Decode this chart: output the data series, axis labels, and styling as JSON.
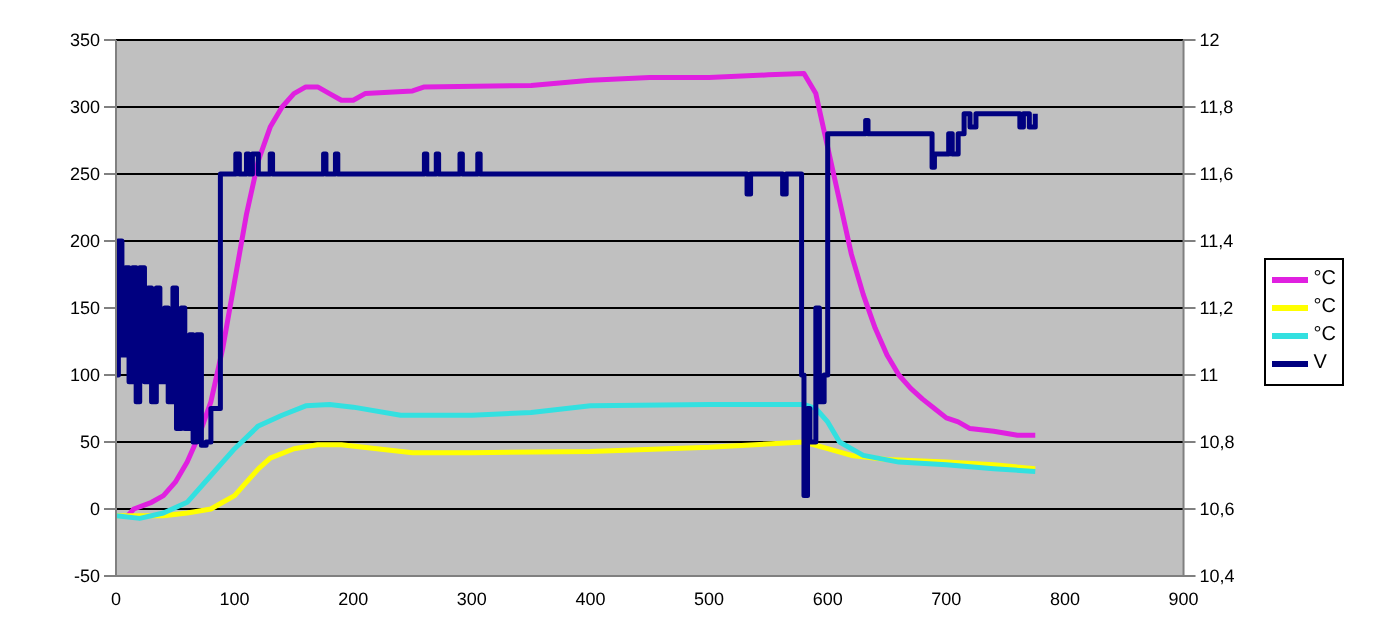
{
  "chart_data": {
    "type": "line",
    "xlim": [
      0,
      900
    ],
    "xticks": [
      0,
      100,
      200,
      300,
      400,
      500,
      600,
      700,
      800,
      900
    ],
    "ylim": [
      -50,
      350
    ],
    "yticks": [
      -50,
      0,
      50,
      100,
      150,
      200,
      250,
      300,
      350
    ],
    "y2lim": [
      10.4,
      12
    ],
    "y2ticks": [
      {
        "value": 10.4,
        "label": "10,4"
      },
      {
        "value": 10.6,
        "label": "10,6"
      },
      {
        "value": 10.8,
        "label": "10,8"
      },
      11,
      {
        "value": 11.2,
        "label": "11,2"
      },
      {
        "value": 11.4,
        "label": "11,4"
      },
      {
        "value": 11.6,
        "label": "11,6"
      },
      {
        "value": 11.8,
        "label": "11,8"
      },
      12
    ],
    "grid": "y",
    "legend": "right",
    "marker": "none",
    "line_style": "solid",
    "series": [
      {
        "name": "°C",
        "color": "#e020e0",
        "x": [
          10,
          15,
          30,
          40,
          50,
          60,
          70,
          80,
          90,
          100,
          110,
          120,
          130,
          140,
          150,
          160,
          170,
          180,
          190,
          200,
          210,
          250,
          260,
          350,
          400,
          450,
          500,
          550,
          580,
          590,
          600,
          610,
          620,
          630,
          640,
          650,
          660,
          670,
          680,
          690,
          700,
          710,
          720,
          740,
          760,
          775
        ],
        "values": [
          -5,
          0,
          5,
          10,
          20,
          35,
          55,
          80,
          120,
          170,
          220,
          260,
          285,
          300,
          310,
          315,
          315,
          310,
          305,
          305,
          310,
          312,
          315,
          316,
          320,
          322,
          322,
          324,
          325,
          310,
          270,
          230,
          190,
          160,
          135,
          115,
          100,
          90,
          82,
          75,
          68,
          65,
          60,
          58,
          55,
          55
        ]
      },
      {
        "name": "°C",
        "color": "#ffff00",
        "x": [
          0,
          40,
          60,
          80,
          90,
          100,
          110,
          120,
          130,
          150,
          170,
          190,
          220,
          250,
          300,
          400,
          500,
          580,
          600,
          620,
          650,
          700,
          740,
          775
        ],
        "values": [
          -5,
          -5,
          -3,
          0,
          5,
          10,
          20,
          30,
          38,
          45,
          48,
          48,
          45,
          42,
          42,
          43,
          46,
          50,
          45,
          40,
          37,
          35,
          33,
          30
        ]
      },
      {
        "name": "°C",
        "color": "#33e0e0",
        "x": [
          0,
          20,
          40,
          60,
          80,
          100,
          120,
          140,
          160,
          180,
          200,
          240,
          300,
          350,
          400,
          500,
          580,
          590,
          600,
          610,
          630,
          660,
          700,
          740,
          775
        ],
        "values": [
          -5,
          -7,
          -3,
          5,
          25,
          45,
          62,
          70,
          77,
          78,
          76,
          70,
          70,
          72,
          77,
          78,
          78,
          75,
          65,
          50,
          40,
          35,
          33,
          30,
          28
        ]
      },
      {
        "name": "V",
        "type": "step",
        "color": "#000080",
        "axis": "y2",
        "x": [
          0,
          2,
          5,
          8,
          11,
          14,
          17,
          20,
          24,
          27,
          30,
          34,
          37,
          41,
          44,
          48,
          51,
          55,
          58,
          62,
          65,
          68,
          72,
          76,
          80,
          88,
          100,
          101,
          104,
          110,
          112,
          115,
          120,
          130,
          132,
          175,
          177,
          185,
          187,
          260,
          262,
          270,
          272,
          290,
          292,
          305,
          307,
          530,
          532,
          535,
          560,
          562,
          565,
          575,
          578,
          580,
          583,
          585,
          590,
          593,
          597,
          600,
          630,
          632,
          634,
          685,
          688,
          690,
          700,
          702,
          705,
          710,
          715,
          720,
          725,
          760,
          762,
          765,
          770,
          775
        ],
        "values": [
          11,
          11.4,
          11.06,
          11.32,
          10.98,
          11.32,
          10.92,
          11.32,
          10.98,
          11.26,
          10.92,
          11.26,
          10.98,
          11.2,
          10.92,
          11.26,
          10.84,
          11.2,
          10.84,
          11.12,
          10.8,
          11.12,
          10.79,
          10.8,
          10.9,
          11.6,
          11.6,
          11.66,
          11.6,
          11.66,
          11.6,
          11.66,
          11.6,
          11.66,
          11.6,
          11.66,
          11.6,
          11.66,
          11.6,
          11.66,
          11.6,
          11.66,
          11.6,
          11.66,
          11.6,
          11.66,
          11.6,
          11.6,
          11.54,
          11.6,
          11.6,
          11.54,
          11.6,
          11.6,
          11,
          10.64,
          10.9,
          10.8,
          11.2,
          10.92,
          11,
          11.72,
          11.72,
          11.76,
          11.72,
          11.72,
          11.62,
          11.66,
          11.66,
          11.72,
          11.66,
          11.72,
          11.78,
          11.74,
          11.78,
          11.78,
          11.74,
          11.78,
          11.74,
          11.78
        ]
      }
    ]
  }
}
